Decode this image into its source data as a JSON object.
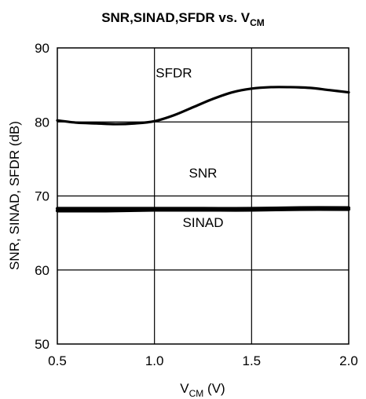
{
  "chart_data": {
    "type": "line",
    "title": {
      "main": "SNR,SINAD,SFDR vs. V",
      "sub": "CM"
    },
    "xlabel": {
      "main": "V",
      "sub": "CM",
      "suffix": " (V)"
    },
    "ylabel": "SNR, SINAD, SFDR (dB)",
    "xlim": [
      0.5,
      2.0
    ],
    "ylim": [
      50,
      90
    ],
    "xticks": [
      0.5,
      1.0,
      1.5,
      2.0
    ],
    "xtick_labels": [
      "0.5",
      "1.0",
      "1.5",
      "2.0"
    ],
    "yticks": [
      50,
      60,
      70,
      80,
      90
    ],
    "ytick_labels": [
      "50",
      "60",
      "70",
      "80",
      "90"
    ],
    "grid": true,
    "series": [
      {
        "name": "SFDR",
        "x": [
          0.5,
          0.6,
          0.7,
          0.8,
          0.9,
          1.0,
          1.1,
          1.2,
          1.3,
          1.4,
          1.5,
          1.6,
          1.7,
          1.8,
          1.9,
          2.0
        ],
        "y": [
          80.2,
          79.9,
          79.8,
          79.7,
          79.8,
          80.1,
          80.9,
          82.0,
          83.1,
          84.0,
          84.5,
          84.7,
          84.7,
          84.6,
          84.3,
          84.0
        ],
        "label": "SFDR",
        "label_x": 1.1,
        "label_y": 86.0
      },
      {
        "name": "SNR",
        "x": [
          0.5,
          0.75,
          1.0,
          1.25,
          1.5,
          1.75,
          2.0
        ],
        "y": [
          68.3,
          68.3,
          68.3,
          68.3,
          68.3,
          68.4,
          68.4
        ],
        "label": "SNR",
        "label_x": 1.25,
        "label_y": 72.5
      },
      {
        "name": "SINAD",
        "x": [
          0.5,
          0.75,
          1.0,
          1.25,
          1.5,
          1.75,
          2.0
        ],
        "y": [
          68.0,
          68.0,
          68.1,
          68.1,
          68.1,
          68.2,
          68.2
        ],
        "label": "SINAD",
        "label_x": 1.25,
        "label_y": 65.8
      }
    ]
  }
}
